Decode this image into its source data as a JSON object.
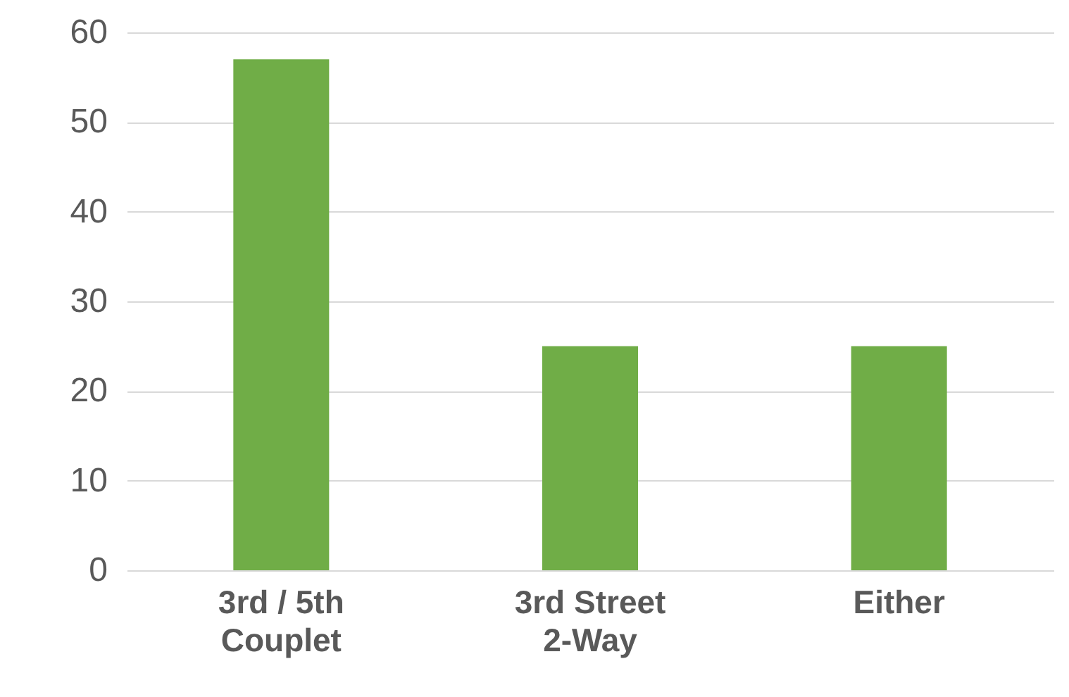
{
  "chart_data": {
    "type": "bar",
    "categories": [
      "3rd / 5th Couplet",
      "3rd Street 2-Way",
      "Either"
    ],
    "values": [
      57,
      25,
      25
    ],
    "color": "#70ad47",
    "ylim": [
      0,
      60
    ],
    "yticks": [
      0,
      10,
      20,
      30,
      40,
      50,
      60
    ],
    "grid": "y"
  }
}
